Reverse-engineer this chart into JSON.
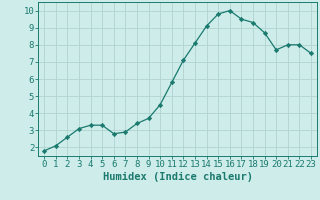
{
  "x": [
    0,
    1,
    2,
    3,
    4,
    5,
    6,
    7,
    8,
    9,
    10,
    11,
    12,
    13,
    14,
    15,
    16,
    17,
    18,
    19,
    20,
    21,
    22,
    23
  ],
  "y": [
    1.8,
    2.1,
    2.6,
    3.1,
    3.3,
    3.3,
    2.8,
    2.9,
    3.4,
    3.7,
    4.5,
    5.8,
    7.1,
    8.1,
    9.1,
    9.8,
    10.0,
    9.5,
    9.3,
    8.7,
    7.7,
    8.0,
    8.0,
    7.5
  ],
  "line_color": "#1a7a6e",
  "marker": "D",
  "marker_size": 2.2,
  "bg_color": "#ceecea",
  "grid_color": "#b0d4d0",
  "xlabel": "Humidex (Indice chaleur)",
  "ylabel": "",
  "ylim": [
    1.5,
    10.5
  ],
  "xlim": [
    -0.5,
    23.5
  ],
  "yticks": [
    2,
    3,
    4,
    5,
    6,
    7,
    8,
    9,
    10
  ],
  "xticks": [
    0,
    1,
    2,
    3,
    4,
    5,
    6,
    7,
    8,
    9,
    10,
    11,
    12,
    13,
    14,
    15,
    16,
    17,
    18,
    19,
    20,
    21,
    22,
    23
  ],
  "tick_color": "#1a7a6e",
  "axis_color": "#1a7a6e",
  "label_fontsize": 7.5,
  "tick_fontsize": 6.5
}
